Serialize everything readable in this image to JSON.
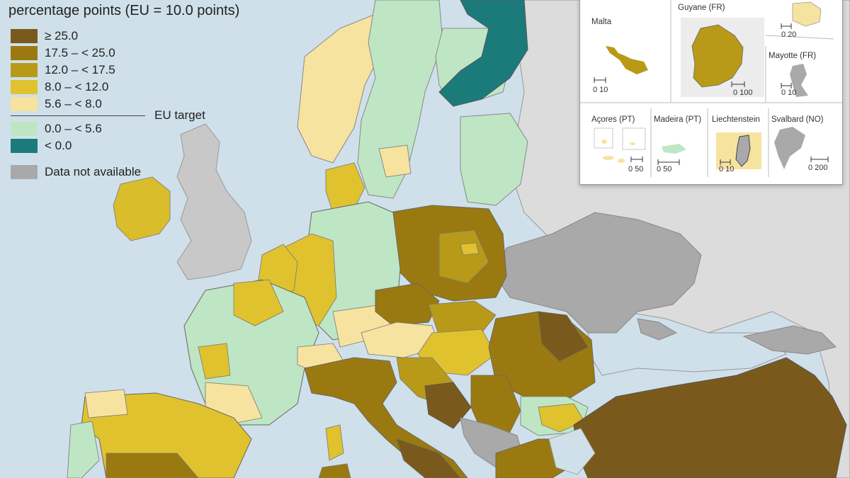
{
  "legend": {
    "title": "percentage points (EU = 10.0 points)",
    "classes": [
      {
        "label": "≥ 25.0",
        "color": "#7a5a1c"
      },
      {
        "label": "17.5 – < 25.0",
        "color": "#9a7a10"
      },
      {
        "label": "12.0 – < 17.5",
        "color": "#b89a18"
      },
      {
        "label": "8.0 – < 12.0",
        "color": "#e0c22e"
      },
      {
        "label": "5.6 – < 8.0",
        "color": "#f7e3a0"
      },
      {
        "label": "0.0 – < 5.6",
        "color": "#bfe6c4"
      },
      {
        "label": "< 0.0",
        "color": "#1b7b7b"
      }
    ],
    "target_label": "EU target",
    "na_label": "Data not available",
    "na_color": "#a9a9a9"
  },
  "insets": {
    "malta": {
      "name": "Malta",
      "scale": "0 10"
    },
    "guyane": {
      "name": "Guyane (FR)",
      "scale": "0 100"
    },
    "reunion": {
      "name": "",
      "scale": "0 20"
    },
    "mayotte": {
      "name": "Mayotte (FR)",
      "scale": "0 10"
    },
    "acores": {
      "name": "Açores (PT)",
      "scale": "0 50"
    },
    "madeira": {
      "name": "Madeira (PT)",
      "scale": "0 50"
    },
    "liechtenstein": {
      "name": "Liechtenstein",
      "scale": "0 10"
    },
    "svalbard": {
      "name": "Svalbard (NO)",
      "scale": "0 200"
    }
  }
}
